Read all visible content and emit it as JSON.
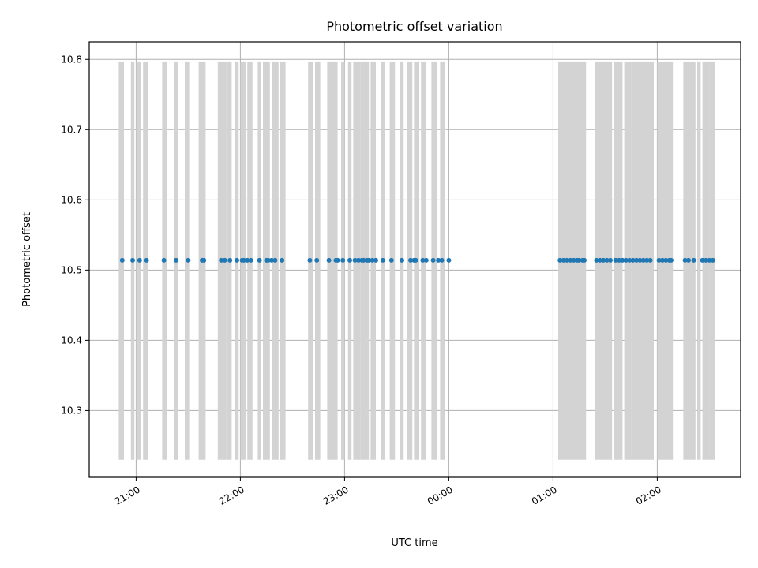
{
  "chart_data": {
    "type": "scatter",
    "title": "Photometric offset variation",
    "xlabel": "UTC time",
    "ylabel": "Photometric offset",
    "xlim": [
      "20:33",
      "02:48"
    ],
    "ylim": [
      10.205,
      10.825
    ],
    "x_ticks": [
      "21:00",
      "22:00",
      "23:00",
      "00:00",
      "01:00",
      "02:00"
    ],
    "y_ticks": [
      10.3,
      10.4,
      10.5,
      10.6,
      10.7,
      10.8
    ],
    "grid": true,
    "band_range": [
      10.23,
      10.797
    ],
    "band_color": "#d3d3d3",
    "point_color": "#1f77b4",
    "offset_value": 10.514,
    "bands": [
      [
        "20:50",
        "20:53"
      ],
      [
        "20:57",
        "20:59"
      ],
      [
        "21:00",
        "21:03"
      ],
      [
        "21:04",
        "21:07"
      ],
      [
        "21:15",
        "21:18"
      ],
      [
        "21:22",
        "21:24"
      ],
      [
        "21:28",
        "21:31"
      ],
      [
        "21:36",
        "21:40"
      ],
      [
        "21:47",
        "21:52"
      ],
      [
        "21:52",
        "21:55"
      ],
      [
        "21:57",
        "21:59"
      ],
      [
        "22:00",
        "22:03"
      ],
      [
        "22:04",
        "22:07"
      ],
      [
        "22:10",
        "22:12"
      ],
      [
        "22:13",
        "22:17"
      ],
      [
        "22:18",
        "22:22"
      ],
      [
        "22:23",
        "22:26"
      ],
      [
        "22:39",
        "22:42"
      ],
      [
        "22:43",
        "22:46"
      ],
      [
        "22:50",
        "22:53"
      ],
      [
        "22:53",
        "22:56"
      ],
      [
        "22:58",
        "23:00"
      ],
      [
        "23:02",
        "23:04"
      ],
      [
        "23:05",
        "23:09"
      ],
      [
        "23:09",
        "23:14"
      ],
      [
        "23:15",
        "23:18"
      ],
      [
        "23:21",
        "23:23"
      ],
      [
        "23:26",
        "23:29"
      ],
      [
        "23:32",
        "23:34"
      ],
      [
        "23:36",
        "23:39"
      ],
      [
        "23:40",
        "23:43"
      ],
      [
        "23:44",
        "23:47"
      ],
      [
        "23:50",
        "23:53"
      ],
      [
        "23:55",
        "23:58"
      ],
      [
        "01:03",
        "01:13"
      ],
      [
        "01:13",
        "01:19"
      ],
      [
        "01:24",
        "01:34"
      ],
      [
        "01:35",
        "01:40"
      ],
      [
        "01:41",
        "01:45"
      ],
      [
        "01:45",
        "01:53"
      ],
      [
        "01:53",
        "01:58"
      ],
      [
        "02:00",
        "02:05"
      ],
      [
        "02:05",
        "02:09"
      ],
      [
        "02:15",
        "02:22"
      ],
      [
        "02:23",
        "02:25"
      ],
      [
        "02:26",
        "02:30"
      ],
      [
        "02:30",
        "02:33"
      ]
    ],
    "points": [
      "20:52",
      "20:58",
      "21:02",
      "21:06",
      "21:16",
      "21:23",
      "21:30",
      "21:38",
      "21:39",
      "21:49",
      "21:51",
      "21:54",
      "21:58",
      "22:01",
      "22:02",
      "22:04",
      "22:06",
      "22:11",
      "22:15",
      "22:16",
      "22:18",
      "22:20",
      "22:24",
      "22:40",
      "22:44",
      "22:51",
      "22:55",
      "22:56",
      "22:59",
      "23:03",
      "23:06",
      "23:08",
      "23:10",
      "23:11",
      "23:13",
      "23:14",
      "23:16",
      "23:18",
      "23:22",
      "23:27",
      "23:33",
      "23:38",
      "23:40",
      "23:41",
      "23:45",
      "23:47",
      "23:51",
      "23:54",
      "23:56",
      "00:00",
      "01:04",
      "01:06",
      "01:08",
      "01:10",
      "01:12",
      "01:14",
      "01:15",
      "01:17",
      "01:18",
      "01:25",
      "01:27",
      "01:29",
      "01:31",
      "01:33",
      "01:36",
      "01:38",
      "01:40",
      "01:42",
      "01:44",
      "01:46",
      "01:48",
      "01:50",
      "01:52",
      "01:54",
      "01:56",
      "02:01",
      "02:03",
      "02:05",
      "02:07",
      "02:08",
      "02:16",
      "02:18",
      "02:21",
      "02:26",
      "02:28",
      "02:30",
      "02:32"
    ]
  }
}
